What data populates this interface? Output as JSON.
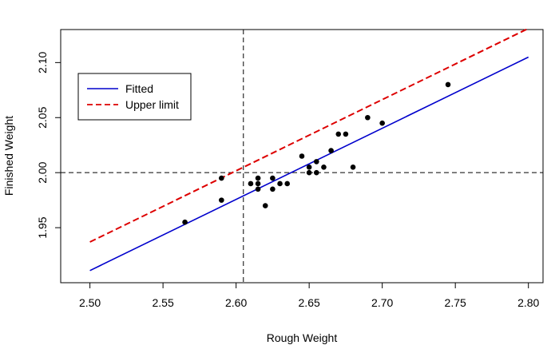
{
  "chart_data": {
    "type": "scatter",
    "xlabel": "Rough Weight",
    "ylabel": "Finished Weight",
    "xlim": [
      2.48,
      2.81
    ],
    "ylim": [
      1.9,
      2.13
    ],
    "x_ticks": [
      {
        "value": 2.5,
        "label": "2.50"
      },
      {
        "value": 2.55,
        "label": "2.55"
      },
      {
        "value": 2.6,
        "label": "2.60"
      },
      {
        "value": 2.65,
        "label": "2.65"
      },
      {
        "value": 2.7,
        "label": "2.70"
      },
      {
        "value": 2.75,
        "label": "2.75"
      },
      {
        "value": 2.8,
        "label": "2.80"
      }
    ],
    "y_ticks": [
      {
        "value": 1.95,
        "label": "1.95"
      },
      {
        "value": 2.0,
        "label": "2.00"
      },
      {
        "value": 2.05,
        "label": "2.05"
      },
      {
        "value": 2.1,
        "label": "2.10"
      }
    ],
    "points": [
      {
        "x": 2.565,
        "y": 1.955
      },
      {
        "x": 2.59,
        "y": 1.975
      },
      {
        "x": 2.59,
        "y": 1.995
      },
      {
        "x": 2.61,
        "y": 1.99
      },
      {
        "x": 2.615,
        "y": 1.985
      },
      {
        "x": 2.615,
        "y": 1.99
      },
      {
        "x": 2.615,
        "y": 1.995
      },
      {
        "x": 2.62,
        "y": 1.97
      },
      {
        "x": 2.625,
        "y": 1.985
      },
      {
        "x": 2.625,
        "y": 1.995
      },
      {
        "x": 2.63,
        "y": 1.99
      },
      {
        "x": 2.635,
        "y": 1.99
      },
      {
        "x": 2.645,
        "y": 2.015
      },
      {
        "x": 2.65,
        "y": 2.0
      },
      {
        "x": 2.65,
        "y": 2.005
      },
      {
        "x": 2.655,
        "y": 2.0
      },
      {
        "x": 2.655,
        "y": 2.01
      },
      {
        "x": 2.66,
        "y": 2.005
      },
      {
        "x": 2.665,
        "y": 2.02
      },
      {
        "x": 2.67,
        "y": 2.035
      },
      {
        "x": 2.675,
        "y": 2.035
      },
      {
        "x": 2.68,
        "y": 2.005
      },
      {
        "x": 2.69,
        "y": 2.05
      },
      {
        "x": 2.7,
        "y": 2.045
      },
      {
        "x": 2.745,
        "y": 2.08
      }
    ],
    "point_color": "#000000",
    "series": [
      {
        "name": "Fitted",
        "color": "#0000CC",
        "style": "solid",
        "x": [
          2.5,
          2.8
        ],
        "y": [
          1.911,
          2.105
        ]
      },
      {
        "name": "Upper limit",
        "color": "#DD0000",
        "style": "dashed",
        "x": [
          2.5,
          2.8
        ],
        "y": [
          1.937,
          2.131
        ]
      }
    ],
    "reference_lines": [
      {
        "orientation": "horizontal",
        "value": 2.0,
        "color": "#000000",
        "style": "dashed"
      },
      {
        "orientation": "vertical",
        "value": 2.605,
        "color": "#000000",
        "style": "dashed"
      }
    ],
    "legend": {
      "position": "top-left"
    },
    "grid": false
  }
}
